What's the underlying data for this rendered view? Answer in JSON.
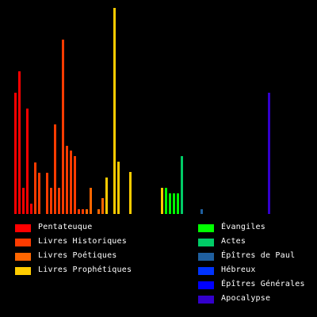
{
  "chart_data": {
    "type": "bar",
    "title": "",
    "xlabel": "",
    "ylabel": "",
    "ylim": [
      0,
      260
    ],
    "colors": {
      "Pentateuque": "#ff0000",
      "Livres Historiques": "#ff3b00",
      "Livres Poétiques": "#ff6600",
      "Livres Prophétiques": "#ffcc00",
      "Évangiles": "#00ff00",
      "Actes": "#00cc66",
      "Épîtres de Paul": "#1f5f9f",
      "Hébreux": "#0033ff",
      "Épîtres Générales": "#0000ff",
      "Apocalypse": "#3300cc"
    },
    "values": [
      {
        "group": "Pentateuque",
        "value": 153
      },
      {
        "group": "Pentateuque",
        "value": 180
      },
      {
        "group": "Pentateuque",
        "value": 33
      },
      {
        "group": "Pentateuque",
        "value": 133
      },
      {
        "group": "Pentateuque",
        "value": 13
      },
      {
        "group": "Livres Historiques",
        "value": 65
      },
      {
        "group": "Livres Historiques",
        "value": 52
      },
      {
        "group": "Livres Historiques",
        "value": 0
      },
      {
        "group": "Livres Historiques",
        "value": 52
      },
      {
        "group": "Livres Historiques",
        "value": 33
      },
      {
        "group": "Livres Historiques",
        "value": 113
      },
      {
        "group": "Livres Historiques",
        "value": 33
      },
      {
        "group": "Livres Historiques",
        "value": 220
      },
      {
        "group": "Livres Historiques",
        "value": 86
      },
      {
        "group": "Livres Historiques",
        "value": 80
      },
      {
        "group": "Livres Historiques",
        "value": 73
      },
      {
        "group": "Livres Historiques",
        "value": 6
      },
      {
        "group": "Livres Historiques",
        "value": 6
      },
      {
        "group": "Livres Poétiques",
        "value": 6
      },
      {
        "group": "Livres Poétiques",
        "value": 33
      },
      {
        "group": "Livres Poétiques",
        "value": 0
      },
      {
        "group": "Livres Poétiques",
        "value": 6
      },
      {
        "group": "Livres Poétiques",
        "value": 20
      },
      {
        "group": "Livres Prophétiques",
        "value": 46
      },
      {
        "group": "Livres Prophétiques",
        "value": 0
      },
      {
        "group": "Livres Prophétiques",
        "value": 260
      },
      {
        "group": "Livres Prophétiques",
        "value": 66
      },
      {
        "group": "Livres Prophétiques",
        "value": 0
      },
      {
        "group": "Livres Prophétiques",
        "value": 0
      },
      {
        "group": "Livres Prophétiques",
        "value": 53
      },
      {
        "group": "Livres Prophétiques",
        "value": 0
      },
      {
        "group": "Livres Prophétiques",
        "value": 0
      },
      {
        "group": "Livres Prophétiques",
        "value": 0
      },
      {
        "group": "Livres Prophétiques",
        "value": 0
      },
      {
        "group": "Livres Prophétiques",
        "value": 0
      },
      {
        "group": "Livres Prophétiques",
        "value": 0
      },
      {
        "group": "Livres Prophétiques",
        "value": 0
      },
      {
        "group": "Livres Prophétiques",
        "value": 33
      },
      {
        "group": "Évangiles",
        "value": 33
      },
      {
        "group": "Évangiles",
        "value": 26
      },
      {
        "group": "Évangiles",
        "value": 26
      },
      {
        "group": "Évangiles",
        "value": 26
      },
      {
        "group": "Actes",
        "value": 73
      },
      {
        "group": "Épîtres de Paul",
        "value": 0
      },
      {
        "group": "Épîtres de Paul",
        "value": 0
      },
      {
        "group": "Épîtres de Paul",
        "value": 0
      },
      {
        "group": "Épîtres de Paul",
        "value": 0
      },
      {
        "group": "Épîtres de Paul",
        "value": 6
      },
      {
        "group": "Épîtres de Paul",
        "value": 0
      },
      {
        "group": "Épîtres de Paul",
        "value": 0
      },
      {
        "group": "Épîtres de Paul",
        "value": 0
      },
      {
        "group": "Épîtres de Paul",
        "value": 0
      },
      {
        "group": "Épîtres de Paul",
        "value": 0
      },
      {
        "group": "Épîtres de Paul",
        "value": 0
      },
      {
        "group": "Épîtres de Paul",
        "value": 0
      },
      {
        "group": "Épîtres de Paul",
        "value": 0
      },
      {
        "group": "Hébreux",
        "value": 0
      },
      {
        "group": "Épîtres Générales",
        "value": 0
      },
      {
        "group": "Épîtres Générales",
        "value": 0
      },
      {
        "group": "Épîtres Générales",
        "value": 0
      },
      {
        "group": "Épîtres Générales",
        "value": 0
      },
      {
        "group": "Épîtres Générales",
        "value": 0
      },
      {
        "group": "Épîtres Générales",
        "value": 0
      },
      {
        "group": "Épîtres Générales",
        "value": 0
      },
      {
        "group": "Apocalypse",
        "value": 153
      }
    ],
    "legend": {
      "left": [
        "Pentateuque",
        "Livres Historiques",
        "Livres Poétiques",
        "Livres Prophétiques"
      ],
      "right": [
        "Évangiles",
        "Actes",
        "Épîtres de Paul",
        "Hébreux",
        "Épîtres Générales",
        "Apocalypse"
      ]
    },
    "grid": false
  }
}
